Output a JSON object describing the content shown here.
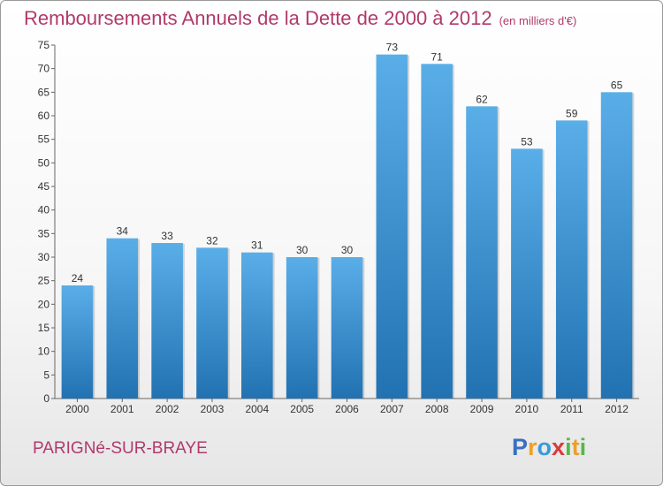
{
  "chart_data": {
    "type": "bar",
    "title": "Remboursements Annuels de la Dette de 2000 à 2012",
    "unit_label": "(en milliers d'€)",
    "categories": [
      "2000",
      "2001",
      "2002",
      "2003",
      "2004",
      "2005",
      "2006",
      "2007",
      "2008",
      "2009",
      "2010",
      "2011",
      "2012"
    ],
    "values": [
      24,
      34,
      33,
      32,
      31,
      30,
      30,
      73,
      71,
      62,
      53,
      59,
      65
    ],
    "ylim": [
      0,
      75
    ],
    "ytick_step": 5,
    "grid": false,
    "bar_color_top": "#5aaee8",
    "bar_color_bottom": "#2272b2"
  },
  "commune": "PARIGNé-SUR-BRAYE",
  "logo": {
    "letters": [
      "P",
      "r",
      "o",
      "x",
      "i",
      "t",
      "i"
    ],
    "colors": [
      "#3a6fc0",
      "#f0a020",
      "#3a9ad8",
      "#d83a3a",
      "#56b84a",
      "#e8a030",
      "#56b84a"
    ]
  }
}
